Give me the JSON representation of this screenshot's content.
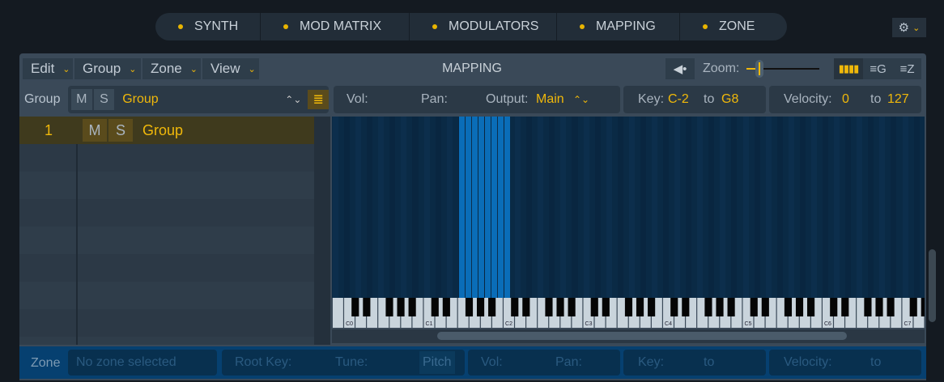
{
  "tabs": [
    {
      "label": "SYNTH"
    },
    {
      "label": "MOD MATRIX"
    },
    {
      "label": "MODULATORS"
    },
    {
      "label": "MAPPING"
    },
    {
      "label": "ZONE"
    }
  ],
  "toolbar": {
    "menus": [
      "Edit",
      "Group",
      "Zone",
      "View"
    ],
    "title": "MAPPING",
    "zoom_label": "Zoom:",
    "zoom_value": 0.1
  },
  "group_row": {
    "label": "Group",
    "m": "M",
    "s": "S",
    "selected": "Group"
  },
  "params": {
    "vol": "Vol:",
    "pan": "Pan:",
    "output_label": "Output:",
    "output_value": "Main",
    "key_label": "Key:",
    "key_from": "C-2",
    "key_to_label": "to",
    "key_to": "G8",
    "vel_label": "Velocity:",
    "vel_from": "0",
    "vel_to_label": "to",
    "vel_to": "127"
  },
  "groups": [
    {
      "number": "1",
      "m": "M",
      "s": "S",
      "name": "Group"
    }
  ],
  "keyboard": {
    "labels": [
      "C0",
      "C1",
      "C2",
      "C3",
      "C4",
      "C5",
      "C6",
      "C7"
    ],
    "highlighted_range": [
      "F1",
      "C2"
    ]
  },
  "zone": {
    "label": "Zone",
    "placeholder": "No zone selected",
    "root_key": "Root Key:",
    "tune": "Tune:",
    "pitch": "Pitch",
    "vol": "Vol:",
    "pan": "Pan:",
    "key": "Key:",
    "to1": "to",
    "velocity": "Velocity:",
    "to2": "to"
  },
  "colors": {
    "accent": "#f0b80a",
    "zone_highlight": "#0a6db8"
  }
}
